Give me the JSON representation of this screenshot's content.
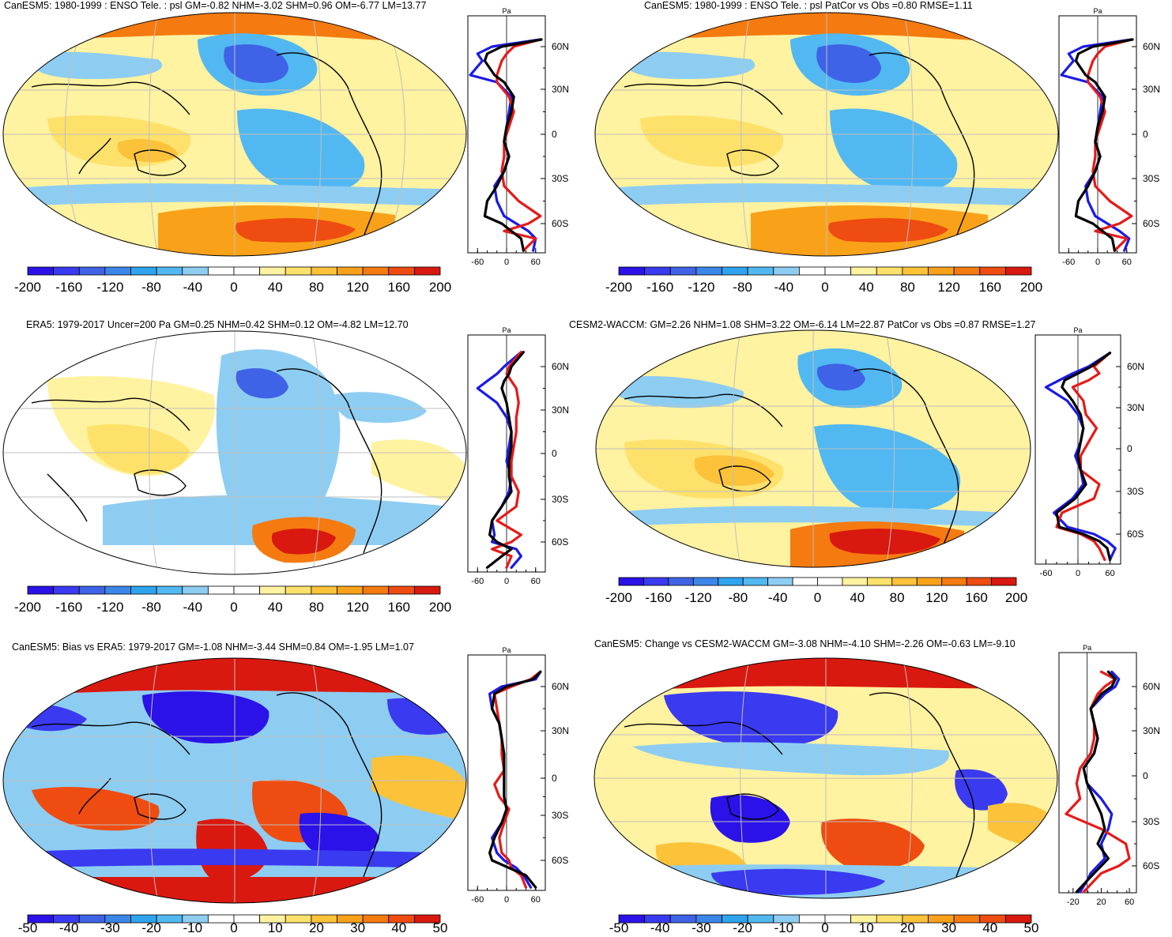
{
  "colors": {
    "palette": [
      "#2a12e8",
      "#3a3af0",
      "#3f63e6",
      "#3c86ea",
      "#2ea4ee",
      "#52b8f2",
      "#8ecdf2",
      "#ffffff",
      "#ffffff",
      "#fff2a0",
      "#fde16a",
      "#fbc23a",
      "#f9a219",
      "#f57a0f",
      "#ee4c10",
      "#d9190f"
    ],
    "land": "#000000",
    "grid": "#bfbfbf",
    "blue_line": "#1a1ae6",
    "red_line": "#e61a1a",
    "black_line": "#000000"
  },
  "chart_data": [
    {
      "id": "p1",
      "type": "heatmap",
      "title": "CanESM5: 1980-1999 : ENSO Tele. : psl GM=-0.82 NHM=-3.02 SHM=0.96 OM=-6.77 LM=13.77",
      "colorbar_ticks": [
        "-200",
        "-160",
        "-120",
        "-80",
        "-40",
        "0",
        "40",
        "80",
        "120",
        "160",
        "200"
      ],
      "zonal_unit": "Pa",
      "zonal_lat_ticks": [
        "60N",
        "30N",
        "0",
        "30S",
        "60S"
      ],
      "zonal_x_ticks": [
        "-60",
        "0",
        "60"
      ],
      "zonal_xlim": [
        -80,
        80
      ],
      "zonal_ylim": [
        -80,
        75
      ],
      "zonal_series": [
        {
          "name": "blue",
          "lat": [
            -78,
            -70,
            -65,
            -60,
            -55,
            -45,
            -35,
            -25,
            -15,
            -5,
            5,
            15,
            25,
            35,
            40,
            50,
            55,
            60,
            65
          ],
          "values": [
            55,
            60,
            45,
            20,
            -5,
            -20,
            -25,
            -5,
            5,
            -5,
            0,
            5,
            10,
            -20,
            -75,
            -50,
            -60,
            -30,
            70
          ]
        },
        {
          "name": "red",
          "lat": [
            -78,
            -70,
            -65,
            -60,
            -55,
            -45,
            -35,
            -25,
            -15,
            -5,
            5,
            15,
            25,
            35,
            40,
            50,
            55,
            60,
            65
          ],
          "values": [
            35,
            60,
            -5,
            45,
            70,
            25,
            -5,
            -10,
            -5,
            -5,
            5,
            15,
            5,
            -20,
            -20,
            -10,
            0,
            15,
            70
          ]
        },
        {
          "name": "black",
          "lat": [
            -78,
            -70,
            -65,
            -60,
            -55,
            -45,
            -35,
            -25,
            -15,
            -5,
            5,
            15,
            25,
            35,
            40,
            50,
            55,
            60,
            65
          ],
          "values": [
            35,
            30,
            10,
            -10,
            -45,
            -40,
            -20,
            -5,
            5,
            -5,
            0,
            10,
            15,
            -5,
            -25,
            -45,
            -40,
            -10,
            72
          ]
        }
      ]
    },
    {
      "id": "p2",
      "type": "heatmap",
      "title": "CanESM5: 1980-1999 : ENSO Tele. : psl PatCor vs Obs =0.80 RMSE=1.11",
      "colorbar_ticks": [
        "-200",
        "-160",
        "-120",
        "-80",
        "-40",
        "0",
        "40",
        "80",
        "120",
        "160",
        "200"
      ],
      "zonal_unit": "Pa",
      "zonal_lat_ticks": [
        "60N",
        "30N",
        "0",
        "30S",
        "60S"
      ],
      "zonal_x_ticks": [
        "-60",
        "0",
        "60"
      ],
      "zonal_xlim": [
        -80,
        80
      ],
      "zonal_ylim": [
        -80,
        75
      ],
      "zonal_series": [
        {
          "name": "blue",
          "lat": [
            -78,
            -70,
            -65,
            -60,
            -55,
            -45,
            -35,
            -25,
            -15,
            -5,
            5,
            15,
            25,
            35,
            40,
            50,
            55,
            60,
            65
          ],
          "values": [
            55,
            65,
            45,
            20,
            -5,
            -20,
            -25,
            -5,
            5,
            -5,
            0,
            5,
            10,
            -20,
            -75,
            -50,
            -60,
            -30,
            70
          ]
        },
        {
          "name": "red",
          "lat": [
            -78,
            -70,
            -65,
            -60,
            -55,
            -45,
            -35,
            -25,
            -15,
            -5,
            5,
            15,
            25,
            35,
            40,
            50,
            55,
            60,
            65
          ],
          "values": [
            35,
            60,
            -5,
            45,
            70,
            25,
            -5,
            -10,
            -5,
            -5,
            5,
            15,
            5,
            -20,
            -20,
            -10,
            0,
            15,
            70
          ]
        },
        {
          "name": "black",
          "lat": [
            -78,
            -70,
            -65,
            -60,
            -55,
            -45,
            -35,
            -25,
            -15,
            -5,
            5,
            15,
            25,
            35,
            40,
            50,
            55,
            60,
            65
          ],
          "values": [
            35,
            30,
            10,
            -10,
            -45,
            -40,
            -20,
            -5,
            5,
            -5,
            0,
            10,
            15,
            -5,
            -25,
            -45,
            -40,
            -10,
            72
          ]
        }
      ]
    },
    {
      "id": "p3",
      "type": "heatmap",
      "title": "ERA5: 1979-2017 Uncer=200 Pa GM=0.25 NHM=0.42 SHM=0.12 OM=-4.82 LM=12.70",
      "colorbar_ticks": [
        "-200",
        "-160",
        "-120",
        "-80",
        "-40",
        "0",
        "40",
        "80",
        "120",
        "160",
        "200"
      ],
      "zonal_unit": "Pa",
      "zonal_lat_ticks": [
        "60N",
        "30N",
        "0",
        "30S",
        "60S"
      ],
      "zonal_x_ticks": [
        "-60",
        "0",
        "60"
      ],
      "zonal_xlim": [
        -80,
        80
      ],
      "zonal_ylim": [
        -80,
        75
      ],
      "zonal_series": [
        {
          "name": "blue",
          "lat": [
            -78,
            -70,
            -65,
            -60,
            -55,
            -45,
            -35,
            -25,
            -15,
            -5,
            5,
            15,
            25,
            35,
            45,
            50,
            55,
            60,
            70
          ],
          "values": [
            10,
            30,
            20,
            -30,
            -25,
            -30,
            -10,
            5,
            10,
            0,
            5,
            10,
            0,
            -20,
            -60,
            -40,
            -20,
            -5,
            30
          ]
        },
        {
          "name": "red",
          "lat": [
            -78,
            -70,
            -65,
            -60,
            -55,
            -45,
            -35,
            -25,
            -15,
            -5,
            5,
            15,
            25,
            35,
            45,
            50,
            55,
            60,
            70
          ],
          "values": [
            0,
            10,
            -30,
            10,
            30,
            -20,
            20,
            25,
            10,
            10,
            15,
            20,
            20,
            25,
            20,
            10,
            0,
            5,
            30
          ]
        },
        {
          "name": "black",
          "lat": [
            -78,
            -70,
            -65,
            -60,
            -55,
            -45,
            -35,
            -25,
            -15,
            -5,
            5,
            15,
            25,
            35,
            45,
            50,
            55,
            60,
            70
          ],
          "values": [
            -40,
            -10,
            10,
            -20,
            -35,
            -30,
            -10,
            10,
            5,
            5,
            10,
            10,
            5,
            0,
            -10,
            -5,
            5,
            10,
            35
          ]
        }
      ]
    },
    {
      "id": "p4",
      "type": "heatmap",
      "title": "CESM2-WACCM: GM=2.26 NHM=1.08 SHM=3.22 OM=-6.14 LM=22.87 PatCor vs Obs =0.87 RMSE=1.27",
      "colorbar_ticks": [
        "-200",
        "-160",
        "-120",
        "-80",
        "-40",
        "0",
        "40",
        "80",
        "120",
        "160",
        "200"
      ],
      "zonal_unit": "Pa",
      "zonal_lat_ticks": [
        "60N",
        "30N",
        "0",
        "30S",
        "60S"
      ],
      "zonal_x_ticks": [
        "-60",
        "0",
        "60"
      ],
      "zonal_xlim": [
        -80,
        80
      ],
      "zonal_ylim": [
        -80,
        75
      ],
      "zonal_series": [
        {
          "name": "blue",
          "lat": [
            -78,
            -70,
            -65,
            -60,
            -55,
            -45,
            -35,
            -25,
            -15,
            -5,
            5,
            15,
            25,
            35,
            45,
            50,
            55,
            60,
            70
          ],
          "values": [
            60,
            70,
            55,
            30,
            -20,
            -45,
            -10,
            10,
            5,
            -5,
            5,
            10,
            0,
            -20,
            -60,
            -35,
            -10,
            20,
            60
          ]
        },
        {
          "name": "red",
          "lat": [
            -78,
            -70,
            -65,
            -60,
            -55,
            -45,
            -35,
            -25,
            -15,
            -5,
            5,
            15,
            25,
            35,
            45,
            50,
            55,
            60,
            70
          ],
          "values": [
            50,
            40,
            30,
            5,
            -40,
            -30,
            30,
            40,
            5,
            5,
            20,
            35,
            15,
            10,
            -10,
            20,
            40,
            30,
            60
          ]
        },
        {
          "name": "black",
          "lat": [
            -78,
            -70,
            -65,
            -60,
            -55,
            -45,
            -35,
            -25,
            -15,
            -5,
            5,
            15,
            25,
            35,
            45,
            50,
            55,
            60,
            70
          ],
          "values": [
            60,
            55,
            40,
            10,
            -35,
            -40,
            -5,
            15,
            5,
            0,
            5,
            10,
            5,
            -10,
            -30,
            -25,
            0,
            25,
            60
          ]
        }
      ]
    },
    {
      "id": "p5",
      "type": "heatmap",
      "title": "CanESM5: Bias vs ERA5: 1979-2017 GM=-1.08 NHM=-3.44 SHM=0.84 OM=-1.95 LM=1.07",
      "colorbar_ticks": [
        "-50",
        "-40",
        "-30",
        "-20",
        "-10",
        "0",
        "10",
        "20",
        "30",
        "40",
        "50"
      ],
      "zonal_unit": "Pa",
      "zonal_lat_ticks": [
        "60N",
        "30N",
        "0",
        "30S",
        "60S"
      ],
      "zonal_x_ticks": [
        "-60",
        "0",
        "60"
      ],
      "zonal_xlim": [
        -80,
        80
      ],
      "zonal_ylim": [
        -80,
        75
      ],
      "zonal_series": [
        {
          "name": "blue",
          "lat": [
            -78,
            -70,
            -65,
            -60,
            -55,
            -45,
            -35,
            -25,
            -15,
            -5,
            5,
            15,
            25,
            35,
            45,
            55,
            60,
            65,
            70
          ],
          "values": [
            50,
            35,
            20,
            -5,
            -20,
            -30,
            -10,
            0,
            -5,
            -5,
            -5,
            -5,
            -10,
            -15,
            -30,
            -35,
            -10,
            60,
            70
          ]
        },
        {
          "name": "red",
          "lat": [
            -78,
            -70,
            -65,
            -60,
            -55,
            -45,
            -35,
            -25,
            -15,
            -5,
            5,
            15,
            25,
            35,
            45,
            55,
            60,
            65,
            70
          ],
          "values": [
            40,
            30,
            10,
            5,
            -10,
            -15,
            -5,
            5,
            -15,
            -25,
            -5,
            -10,
            -10,
            -15,
            -20,
            -25,
            10,
            50,
            70
          ]
        },
        {
          "name": "black",
          "lat": [
            -78,
            -70,
            -65,
            -60,
            -55,
            -45,
            -35,
            -25,
            -15,
            -5,
            5,
            15,
            25,
            35,
            45,
            55,
            60,
            65,
            70
          ],
          "values": [
            60,
            40,
            5,
            -30,
            -35,
            -25,
            -10,
            0,
            -5,
            -5,
            -5,
            -5,
            -10,
            -15,
            -30,
            -25,
            0,
            55,
            70
          ]
        }
      ]
    },
    {
      "id": "p6",
      "type": "heatmap",
      "title": "CanESM5: Change vs CESM2-WACCM GM=-3.08 NHM=-4.10 SHM=-2.26 OM=-0.63 LM=-9.10",
      "colorbar_ticks": [
        "-50",
        "-40",
        "-30",
        "-20",
        "-10",
        "0",
        "10",
        "20",
        "30",
        "40",
        "50"
      ],
      "zonal_unit": "Pa",
      "zonal_lat_ticks": [
        "60N",
        "30N",
        "0",
        "30S",
        "60S"
      ],
      "zonal_x_ticks": [
        "-20",
        "20",
        "60"
      ],
      "zonal_xlim": [
        -40,
        70
      ],
      "zonal_ylim": [
        -80,
        75
      ],
      "zonal_series": [
        {
          "name": "blue",
          "lat": [
            -78,
            -70,
            -65,
            -60,
            -55,
            -45,
            -35,
            -25,
            -15,
            -5,
            5,
            15,
            25,
            35,
            45,
            55,
            60,
            65,
            70
          ],
          "values": [
            -10,
            0,
            5,
            15,
            25,
            20,
            30,
            35,
            20,
            0,
            -5,
            10,
            15,
            10,
            5,
            25,
            40,
            45,
            35
          ]
        },
        {
          "name": "red",
          "lat": [
            -78,
            -70,
            -65,
            -60,
            -55,
            -45,
            -35,
            -25,
            -15,
            -5,
            5,
            15,
            25,
            35,
            45,
            55,
            60,
            65,
            70
          ],
          "values": [
            -5,
            10,
            20,
            45,
            60,
            55,
            20,
            -30,
            -10,
            -15,
            -10,
            5,
            10,
            10,
            5,
            15,
            25,
            40,
            20
          ]
        },
        {
          "name": "black",
          "lat": [
            -78,
            -70,
            -65,
            -60,
            -55,
            -45,
            -35,
            -25,
            -15,
            -5,
            5,
            15,
            25,
            35,
            45,
            55,
            60,
            65,
            70
          ],
          "values": [
            -15,
            0,
            10,
            20,
            30,
            15,
            25,
            20,
            10,
            0,
            -5,
            10,
            15,
            10,
            5,
            20,
            35,
            40,
            30
          ]
        }
      ]
    }
  ]
}
